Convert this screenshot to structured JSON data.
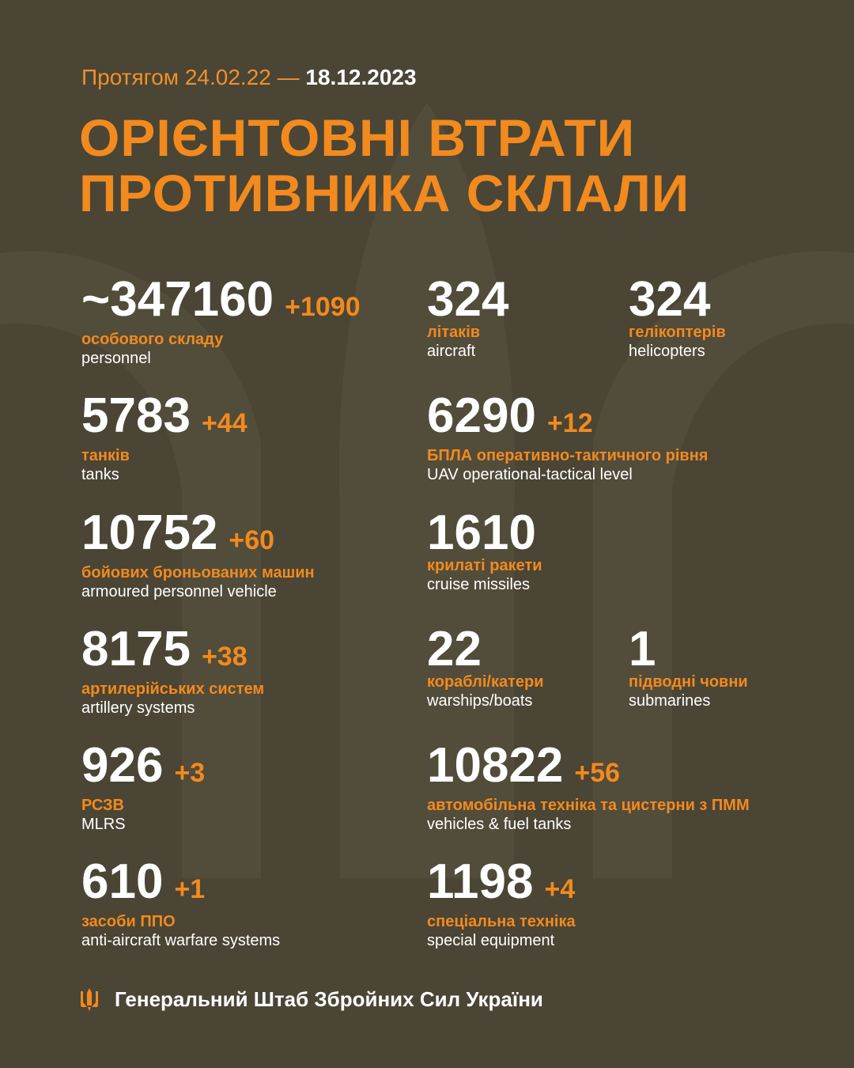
{
  "header": {
    "period": "Протягом 24.02.22 —",
    "date": "18.12.2023",
    "title": [
      "ОРІЄНТОВНІ ВТРАТИ",
      "ПРОТИВНИКА СКЛАЛИ"
    ]
  },
  "items": [
    {
      "value": "~347160",
      "delta": "+1090",
      "label": "особового складу",
      "label_en": "personnel"
    },
    {
      "value": "324",
      "label": "літаків",
      "label_en": "aircraft"
    },
    {
      "value": "324",
      "label": "гелікоптерів",
      "label_en": "helicopters"
    },
    {
      "value": "5783",
      "delta": "+44",
      "label": "танків",
      "label_en": "tanks"
    },
    {
      "value": "6290",
      "delta": "+12",
      "label": "БПЛА оперативно-тактичного рівня",
      "label_en": "UAV operational-tactical level"
    },
    {
      "value": "10752",
      "delta": "+60",
      "label": "бойових броньованих машин",
      "label_en": "armoured personnel vehicle"
    },
    {
      "value": "1610",
      "label": "крилаті ракети",
      "label_en": "cruise missiles"
    },
    {
      "value": "8175",
      "delta": "+38",
      "label": "артилерійських систем",
      "label_en": "artillery systems"
    },
    {
      "value": "22",
      "label": "кораблі/катери",
      "label_en": "warships/boats"
    },
    {
      "value": "1",
      "label": "підводні човни",
      "label_en": "submarines"
    },
    {
      "value": "926",
      "delta": "+3",
      "label": "РСЗВ",
      "label_en": "MLRS"
    },
    {
      "value": "10822",
      "delta": "+56",
      "label": "автомобільна техніка та цистерни з ПММ",
      "label_en": "vehicles & fuel tanks"
    },
    {
      "value": "610",
      "delta": "+1",
      "label": "засоби ППО",
      "label_en": "anti-aircraft warfare systems"
    },
    {
      "value": "1198",
      "delta": "+4",
      "label": "спеціальна техніка",
      "label_en": "special equipment"
    }
  ],
  "footer": "Генеральний Штаб Збройних Сил України"
}
